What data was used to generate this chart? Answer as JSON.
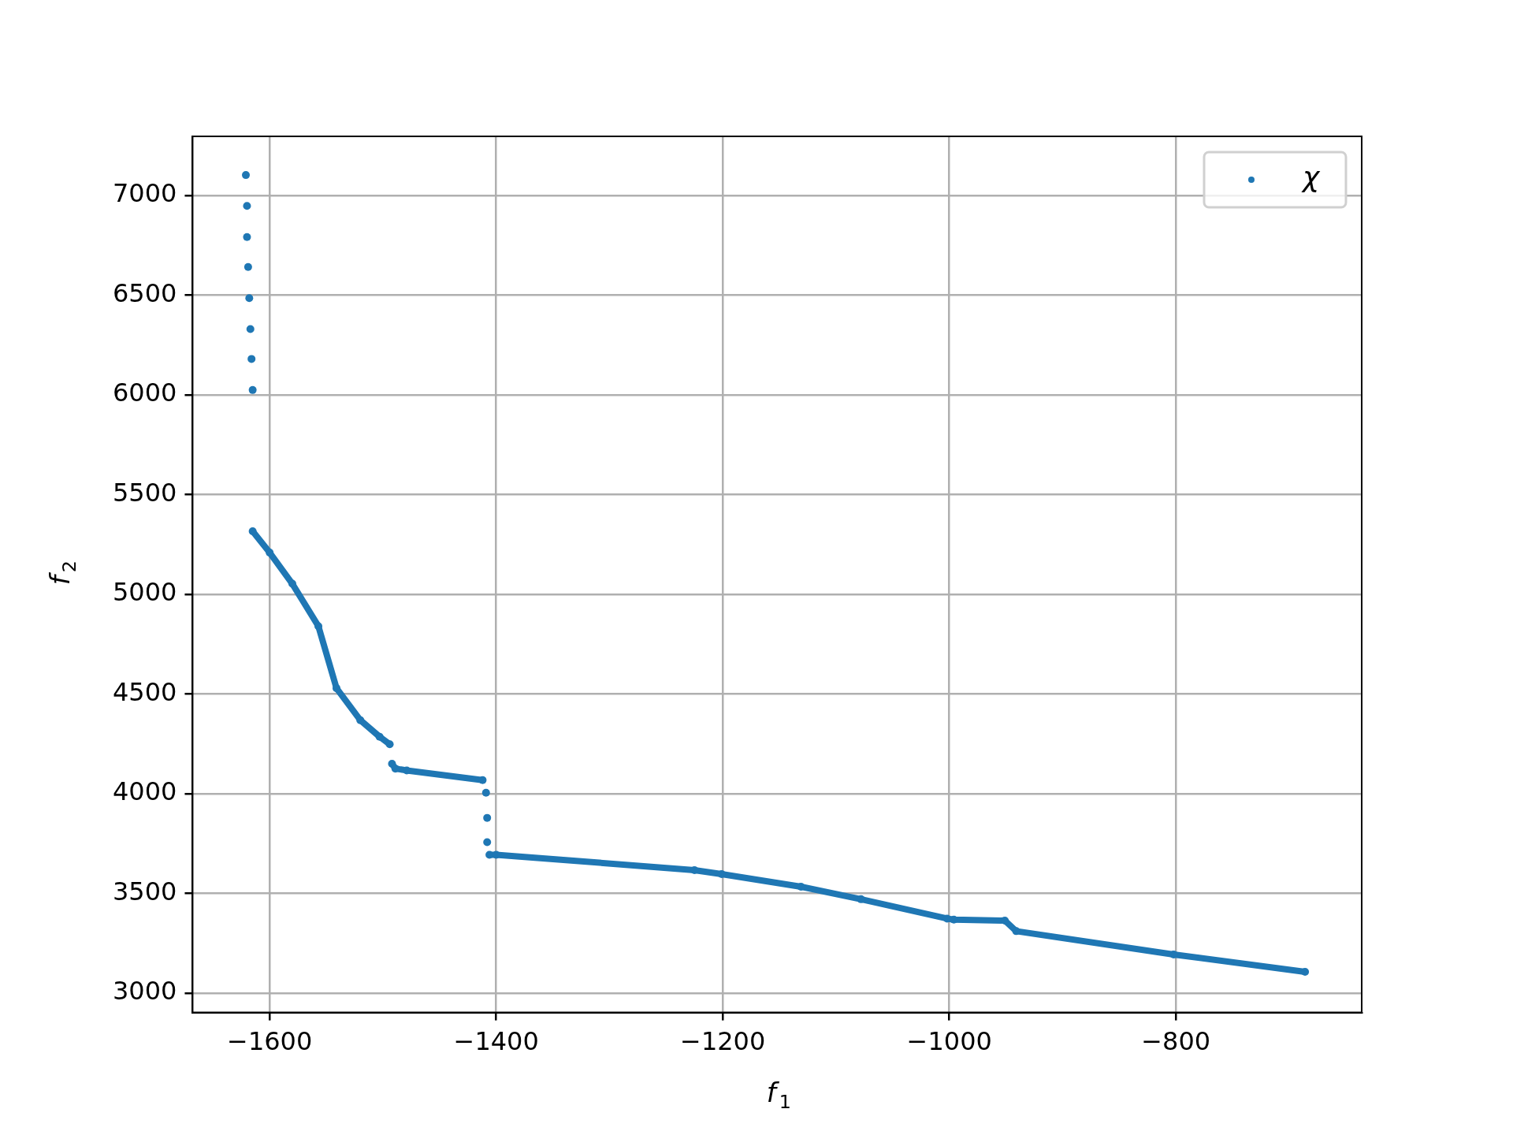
{
  "chart_data": {
    "type": "scatter",
    "xlabel": "f$_{1}$",
    "ylabel": "f$_{2}$",
    "legend": "top right",
    "grid": true,
    "marker": "circle",
    "xlim": [
      -1668,
      -636
    ],
    "ylim": [
      2903,
      7296
    ],
    "xticks": [
      {
        "value": -1600,
        "label": "−1600"
      },
      {
        "value": -1400,
        "label": "−1400"
      },
      {
        "value": -1200,
        "label": "−1200"
      },
      {
        "value": -1000,
        "label": "−1000"
      },
      {
        "value": -800,
        "label": "−800"
      }
    ],
    "yticks": [
      3000,
      3500,
      4000,
      4500,
      5000,
      5500,
      6000,
      6500,
      7000
    ],
    "series": [
      {
        "name": "χ",
        "type": "line",
        "color": "#1f77b4",
        "x": [
          -1621,
          null,
          -1620,
          null,
          -1620,
          null,
          -1619,
          null,
          -1618,
          null,
          -1617,
          null,
          -1616,
          null,
          -1615,
          null,
          -1615,
          -1600,
          -1580,
          -1557,
          -1541,
          -1520,
          -1503,
          -1494,
          null,
          -1492,
          -1489,
          -1479,
          -1412,
          null,
          -1409,
          null,
          -1408,
          null,
          -1408,
          null,
          -1406,
          -1400,
          -1225,
          -1201,
          -1131,
          -1078,
          -1002,
          -996,
          -951,
          -941,
          -802,
          -686
        ],
        "values": [
          7102,
          null,
          6947,
          null,
          6791,
          null,
          6641,
          null,
          6485,
          null,
          6330,
          null,
          6180,
          null,
          6024,
          null,
          5316,
          5209,
          5053,
          4840,
          4529,
          4369,
          4286,
          4248,
          null,
          4150,
          4126,
          4117,
          4068,
          null,
          4005,
          null,
          3879,
          null,
          3757,
          null,
          3694,
          3694,
          3617,
          3597,
          3534,
          3471,
          3374,
          3369,
          3364,
          3311,
          3194,
          3107
        ]
      }
    ]
  }
}
